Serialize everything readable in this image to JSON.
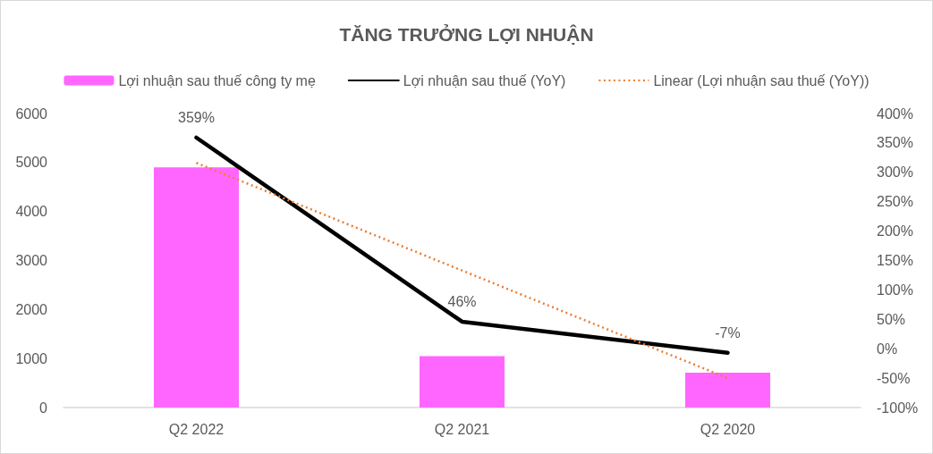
{
  "chart_data": {
    "type": "bar",
    "title": "TĂNG TRƯỞNG LỢI NHUẬN",
    "categories": [
      "Q2 2022",
      "Q2 2021",
      "Q2 2020"
    ],
    "series": [
      {
        "name": "Lợi nhuận sau thuế công ty mẹ",
        "type": "bar",
        "color": "#ff66ff",
        "values": [
          4900,
          1050,
          710
        ]
      },
      {
        "name": "Lợi nhuận sau thuế (YoY)",
        "type": "line",
        "axis": "y2",
        "color": "#000000",
        "values": [
          359,
          46,
          -7
        ],
        "value_labels": [
          "359%",
          "46%",
          "-7%"
        ],
        "line_style": "solid"
      },
      {
        "name": "Linear (Lợi nhuận sau thuế (YoY))",
        "type": "line",
        "axis": "y2",
        "color": "#ed7d31",
        "x": [
          "Q2 2022",
          "Q2 2021",
          "Q2 2020"
        ],
        "values": [
          316,
          133,
          -50
        ],
        "line_style": "dotted"
      }
    ],
    "ylim": [
      0,
      6000
    ],
    "yticks": [
      0,
      1000,
      2000,
      3000,
      4000,
      5000,
      6000
    ],
    "y2lim": [
      -100,
      400
    ],
    "y2ticks": [
      {
        "value": -100,
        "label": "-100%"
      },
      {
        "value": -50,
        "label": "-50%"
      },
      {
        "value": 0,
        "label": "0%"
      },
      {
        "value": 50,
        "label": "50%"
      },
      {
        "value": 100,
        "label": "100%"
      },
      {
        "value": 150,
        "label": "150%"
      },
      {
        "value": 200,
        "label": "200%"
      },
      {
        "value": 250,
        "label": "250%"
      },
      {
        "value": 300,
        "label": "300%"
      },
      {
        "value": 350,
        "label": "350%"
      },
      {
        "value": 400,
        "label": "400%"
      }
    ],
    "grid": false,
    "legend": "top",
    "marker": "none"
  }
}
